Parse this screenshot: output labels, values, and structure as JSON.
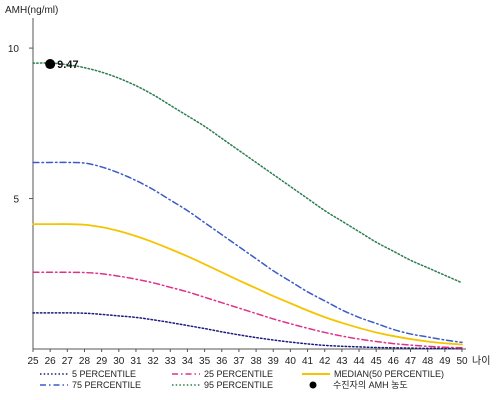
{
  "chart_data": {
    "type": "line",
    "title": "",
    "ylabel": "AMH(ng/ml)",
    "xlabel": "나이",
    "x": [
      25,
      26,
      27,
      28,
      29,
      30,
      31,
      32,
      33,
      34,
      35,
      36,
      37,
      38,
      39,
      40,
      41,
      42,
      43,
      44,
      45,
      46,
      47,
      48,
      49,
      50
    ],
    "xlim": [
      25,
      50
    ],
    "ylim": [
      0,
      11
    ],
    "yticks": [
      5,
      10
    ],
    "grid": false,
    "legend_position": "bottom",
    "series": [
      {
        "name": "5 PERCENTILE",
        "color": "#1a1a80",
        "dash": "dotted",
        "values": [
          1.2,
          1.2,
          1.2,
          1.19,
          1.15,
          1.1,
          1.05,
          0.97,
          0.88,
          0.78,
          0.68,
          0.57,
          0.47,
          0.38,
          0.3,
          0.23,
          0.17,
          0.12,
          0.09,
          0.07,
          0.05,
          0.04,
          0.03,
          0.02,
          0.02,
          0.01
        ]
      },
      {
        "name": "75 PERCENTILE",
        "color": "#3b5bc7",
        "dash": "dashdot",
        "values": [
          6.2,
          6.2,
          6.2,
          6.18,
          6.05,
          5.85,
          5.6,
          5.3,
          4.95,
          4.6,
          4.2,
          3.8,
          3.4,
          3.0,
          2.6,
          2.25,
          1.9,
          1.6,
          1.3,
          1.05,
          0.85,
          0.65,
          0.5,
          0.4,
          0.3,
          0.22
        ]
      },
      {
        "name": "25 PERCENTILE",
        "color": "#e0308a",
        "dash": "dashdot",
        "values": [
          2.55,
          2.55,
          2.55,
          2.54,
          2.5,
          2.42,
          2.32,
          2.2,
          2.05,
          1.9,
          1.72,
          1.54,
          1.36,
          1.18,
          1.0,
          0.84,
          0.69,
          0.55,
          0.43,
          0.33,
          0.25,
          0.18,
          0.13,
          0.09,
          0.06,
          0.04
        ]
      },
      {
        "name": "95 PERCENTILE",
        "color": "#2e7d4f",
        "dash": "dotted",
        "values": [
          9.5,
          9.5,
          9.45,
          9.35,
          9.2,
          9.0,
          8.75,
          8.45,
          8.1,
          7.75,
          7.4,
          7.0,
          6.6,
          6.2,
          5.8,
          5.4,
          5.0,
          4.6,
          4.25,
          3.9,
          3.55,
          3.25,
          2.95,
          2.7,
          2.45,
          2.2
        ]
      },
      {
        "name": "MEDIAN(50 PERCENTILE)",
        "color": "#f5c400",
        "dash": "solid",
        "values": [
          4.15,
          4.15,
          4.15,
          4.13,
          4.05,
          3.92,
          3.75,
          3.55,
          3.32,
          3.08,
          2.82,
          2.55,
          2.28,
          2.02,
          1.76,
          1.52,
          1.28,
          1.06,
          0.87,
          0.7,
          0.55,
          0.43,
          0.33,
          0.25,
          0.19,
          0.15
        ]
      }
    ],
    "marker": {
      "legend_label": "수진자의 AMH 농도",
      "x": 26,
      "y": 9.47,
      "label": "9.47",
      "color": "#000000"
    },
    "axis_color": "#555555"
  }
}
